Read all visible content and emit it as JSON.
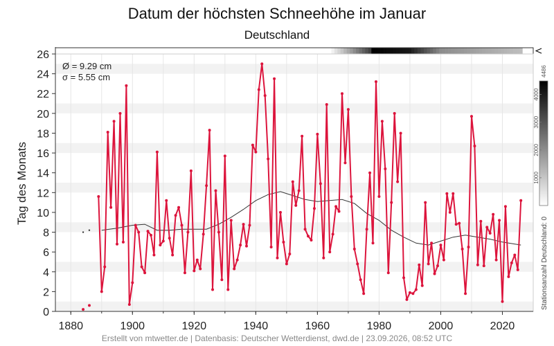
{
  "chart_data": {
    "type": "line",
    "title": "Datum der höchsten Schneehöhe im Januar",
    "subtitle": "Deutschland",
    "ylabel": "Tag des Monats",
    "xlim": [
      1875,
      2030
    ],
    "ylim": [
      0,
      26
    ],
    "xticks": [
      "1880",
      "1900",
      "1920",
      "1940",
      "1960",
      "1980",
      "2000",
      "2020"
    ],
    "yticks": [
      "0",
      "2",
      "4",
      "6",
      "8",
      "10",
      "12",
      "14",
      "16",
      "18",
      "20",
      "22",
      "24",
      "26"
    ],
    "grid": true,
    "stats": {
      "mean": "Ø = 9.29 cm",
      "sd": "σ = 5.55 cm"
    },
    "colors": {
      "series": "#dc143c",
      "trend": "#333333",
      "band": "#f2f2f2"
    },
    "series": [
      {
        "color": "#dc143c",
        "x": [
          1884,
          1886,
          1889,
          1890,
          1891,
          1892,
          1893,
          1894,
          1895,
          1896,
          1897,
          1898,
          1899,
          1900,
          1901,
          1902,
          1903,
          1904,
          1905,
          1906,
          1907,
          1908,
          1909,
          1910,
          1911,
          1912,
          1913,
          1914,
          1915,
          1916,
          1917,
          1918,
          1919,
          1920,
          1921,
          1922,
          1923,
          1924,
          1925,
          1926,
          1927,
          1928,
          1929,
          1930,
          1931,
          1932,
          1933,
          1934,
          1935,
          1936,
          1937,
          1938,
          1939,
          1940,
          1941,
          1942,
          1943,
          1944,
          1945,
          1946,
          1947,
          1948,
          1949,
          1950,
          1951,
          1952,
          1953,
          1954,
          1955,
          1956,
          1957,
          1958,
          1959,
          1960,
          1961,
          1962,
          1963,
          1964,
          1965,
          1966,
          1967,
          1968,
          1969,
          1970,
          1971,
          1972,
          1973,
          1974,
          1975,
          1976,
          1977,
          1978,
          1979,
          1980,
          1981,
          1982,
          1983,
          1984,
          1985,
          1986,
          1987,
          1988,
          1989,
          1990,
          1991,
          1992,
          1993,
          1994,
          1995,
          1996,
          1997,
          1998,
          1999,
          2000,
          2001,
          2002,
          2003,
          2004,
          2005,
          2006,
          2007,
          2008,
          2009,
          2010,
          2011,
          2012,
          2013,
          2014,
          2015,
          2016,
          2017,
          2018,
          2019,
          2020,
          2021,
          2022,
          2023,
          2024,
          2025,
          2026
        ],
        "values": [
          0.2,
          0.6,
          11.6,
          2.0,
          4.5,
          18.1,
          10.5,
          19.2,
          6.8,
          20.0,
          7.0,
          22.8,
          0.7,
          2.9,
          8.7,
          8.0,
          4.5,
          3.9,
          8.1,
          7.7,
          5.7,
          16.1,
          6.7,
          7.1,
          11.2,
          7.4,
          5.7,
          9.7,
          10.5,
          8.7,
          3.9,
          8.0,
          14.2,
          4.1,
          5.2,
          4.3,
          7.8,
          12.7,
          18.3,
          2.2,
          12.2,
          8.0,
          3.2,
          15.7,
          2.2,
          9.2,
          4.3,
          5.2,
          6.7,
          8.8,
          6.6,
          8.7,
          16.8,
          16.1,
          22.4,
          25.0,
          21.8,
          15.4,
          6.5,
          23.5,
          5.4,
          10.0,
          7.0,
          4.8,
          5.8,
          13.1,
          10.7,
          12.2,
          17.7,
          8.3,
          7.6,
          7.2,
          10.4,
          17.9,
          12.9,
          5.4,
          20.9,
          6.0,
          7.8,
          10.6,
          10.1,
          22.0,
          15.0,
          20.4,
          11.6,
          6.3,
          4.8,
          3.2,
          1.8,
          8.3,
          14.0,
          6.9,
          23.2,
          11.6,
          19.2,
          14.4,
          3.9,
          11.0,
          20.0,
          13.1,
          18.0,
          3.4,
          1.2,
          1.9,
          1.8,
          2.2,
          4.7,
          2.6,
          11.0,
          4.8,
          6.9,
          3.8,
          4.6,
          6.7,
          5.2,
          11.9,
          10.0,
          11.9,
          8.8,
          8.9,
          6.3,
          1.8,
          6.5,
          19.7,
          16.7,
          4.7,
          9.1,
          4.6,
          8.5,
          7.9,
          9.8,
          5.2,
          9.2,
          1.0,
          10.6,
          3.5,
          4.9,
          5.7,
          4.2,
          11.2
        ]
      }
    ],
    "trend": {
      "color": "#333333",
      "x": [
        1884,
        1886,
        1890,
        1895,
        1900,
        1904,
        1908,
        1912,
        1916,
        1920,
        1924,
        1928,
        1932,
        1936,
        1940,
        1944,
        1948,
        1952,
        1956,
        1960,
        1964,
        1968,
        1972,
        1976,
        1980,
        1984,
        1988,
        1992,
        1996,
        2000,
        2004,
        2008,
        2012,
        2016,
        2020,
        2026
      ],
      "values": [
        8.0,
        8.2,
        8.2,
        8.4,
        8.7,
        8.8,
        8.2,
        8.2,
        8.3,
        8.3,
        8.3,
        8.8,
        9.5,
        10.3,
        11.2,
        11.8,
        12.1,
        11.7,
        11.3,
        11.1,
        11.2,
        11.3,
        10.9,
        9.9,
        9.2,
        8.2,
        7.5,
        6.9,
        6.7,
        7.1,
        7.5,
        7.7,
        7.5,
        7.3,
        7.0,
        6.7
      ]
    },
    "colorbar": {
      "label": "Stationsanzahl Deutschland: 0",
      "max_label": "4486",
      "ticks": [
        "1000",
        "2000",
        "3000",
        "4000"
      ],
      "max": 4486
    },
    "footer": "Erstellt von mtwetter.de | Datenbasis: Deutscher Wetterdienst, dwd.de | 23.09.2026, 08:52 UTC"
  }
}
